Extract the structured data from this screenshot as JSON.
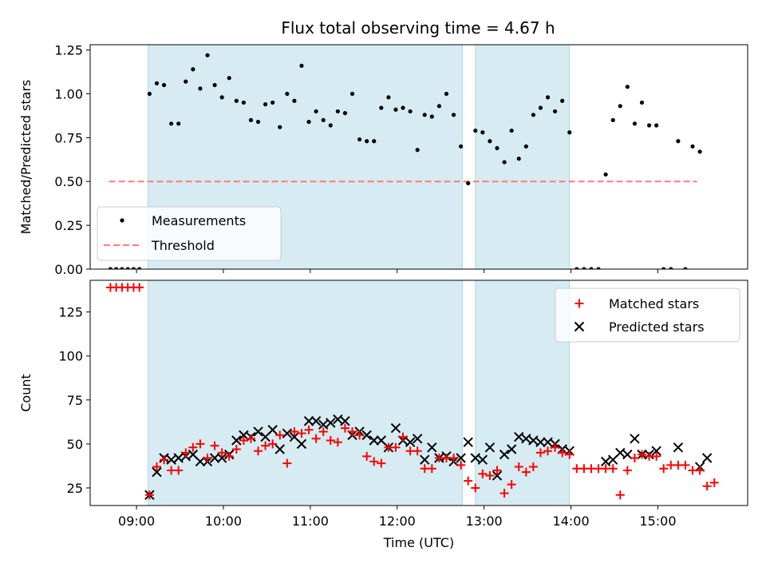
{
  "title": "Flux total observing time = 4.67 h",
  "chart_data": [
    {
      "type": "scatter",
      "ylabel": "Matched/Predicted stars",
      "xlim": [
        "08:28",
        "16:02"
      ],
      "ylim": [
        0,
        1.28
      ],
      "yticks": [
        {
          "value": 0,
          "label": "0.00"
        },
        {
          "value": 0.25,
          "label": "0.25"
        },
        {
          "value": 0.5,
          "label": "0.50"
        },
        {
          "value": 0.75,
          "label": "0.75"
        },
        {
          "value": 1.0,
          "label": "1.00"
        },
        {
          "value": 1.25,
          "label": "1.25"
        }
      ],
      "shaded_intervals": [
        [
          "09:08",
          "12:45"
        ],
        [
          "12:54",
          "13:59"
        ]
      ],
      "legend": {
        "placement": "lower-left",
        "entries": [
          "Measurements",
          "Threshold"
        ]
      },
      "threshold": {
        "name": "Threshold",
        "value": 0.5,
        "x": [
          "08:41",
          "15:27"
        ],
        "color": "#ff7b7b"
      },
      "measurements": {
        "name": "Measurements",
        "color": "#000000",
        "points": [
          [
            "08:42",
            0
          ],
          [
            "08:46",
            0
          ],
          [
            "08:50",
            0
          ],
          [
            "08:54",
            0
          ],
          [
            "08:58",
            0
          ],
          [
            "09:02",
            0
          ],
          [
            "09:09",
            1.0
          ],
          [
            "09:14",
            1.06
          ],
          [
            "09:19",
            1.05
          ],
          [
            "09:24",
            0.83
          ],
          [
            "09:29",
            0.83
          ],
          [
            "09:34",
            1.07
          ],
          [
            "09:39",
            1.14
          ],
          [
            "09:44",
            1.03
          ],
          [
            "09:49",
            1.22
          ],
          [
            "09:54",
            1.05
          ],
          [
            "09:59",
            0.98
          ],
          [
            "10:04",
            1.09
          ],
          [
            "10:09",
            0.96
          ],
          [
            "10:14",
            0.95
          ],
          [
            "10:19",
            0.85
          ],
          [
            "10:24",
            0.84
          ],
          [
            "10:29",
            0.94
          ],
          [
            "10:34",
            0.95
          ],
          [
            "10:39",
            0.81
          ],
          [
            "10:44",
            1.0
          ],
          [
            "10:49",
            0.96
          ],
          [
            "10:54",
            1.16
          ],
          [
            "10:59",
            0.84
          ],
          [
            "11:04",
            0.9
          ],
          [
            "11:09",
            0.85
          ],
          [
            "11:14",
            0.82
          ],
          [
            "11:19",
            0.9
          ],
          [
            "11:24",
            0.89
          ],
          [
            "11:29",
            1.0
          ],
          [
            "11:34",
            0.74
          ],
          [
            "11:39",
            0.73
          ],
          [
            "11:44",
            0.73
          ],
          [
            "11:49",
            0.92
          ],
          [
            "11:54",
            0.98
          ],
          [
            "11:59",
            0.91
          ],
          [
            "12:04",
            0.92
          ],
          [
            "12:09",
            0.9
          ],
          [
            "12:14",
            0.68
          ],
          [
            "12:19",
            0.88
          ],
          [
            "12:24",
            0.87
          ],
          [
            "12:29",
            0.93
          ],
          [
            "12:34",
            1.0
          ],
          [
            "12:39",
            0.88
          ],
          [
            "12:44",
            0.7
          ],
          [
            "12:49",
            0.49
          ],
          [
            "12:54",
            0.79
          ],
          [
            "12:59",
            0.78
          ],
          [
            "13:04",
            0.73
          ],
          [
            "13:09",
            0.69
          ],
          [
            "13:14",
            0.61
          ],
          [
            "13:19",
            0.79
          ],
          [
            "13:24",
            0.63
          ],
          [
            "13:29",
            0.7
          ],
          [
            "13:34",
            0.88
          ],
          [
            "13:39",
            0.92
          ],
          [
            "13:44",
            0.98
          ],
          [
            "13:49",
            0.9
          ],
          [
            "13:54",
            0.96
          ],
          [
            "13:59",
            0.78
          ],
          [
            "14:04",
            0
          ],
          [
            "14:09",
            0
          ],
          [
            "14:14",
            0
          ],
          [
            "14:19",
            0
          ],
          [
            "14:24",
            0.54
          ],
          [
            "14:29",
            0.85
          ],
          [
            "14:34",
            0.93
          ],
          [
            "14:39",
            1.04
          ],
          [
            "14:44",
            0.83
          ],
          [
            "14:49",
            0.95
          ],
          [
            "14:54",
            0.82
          ],
          [
            "14:59",
            0.82
          ],
          [
            "15:04",
            0
          ],
          [
            "15:09",
            0
          ],
          [
            "15:14",
            0.73
          ],
          [
            "15:19",
            0
          ],
          [
            "15:24",
            0.7
          ],
          [
            "15:29",
            0.67
          ]
        ]
      }
    },
    {
      "type": "scatter",
      "xlabel": "Time (UTC)",
      "ylabel": "Count",
      "xlim": [
        "08:28",
        "16:02"
      ],
      "ylim": [
        15,
        143
      ],
      "yticks": [
        {
          "value": 25,
          "label": "25"
        },
        {
          "value": 50,
          "label": "50"
        },
        {
          "value": 75,
          "label": "75"
        },
        {
          "value": 100,
          "label": "100"
        },
        {
          "value": 125,
          "label": "125"
        }
      ],
      "xticks": [
        {
          "value": "09:00",
          "label": "09:00"
        },
        {
          "value": "10:00",
          "label": "10:00"
        },
        {
          "value": "11:00",
          "label": "11:00"
        },
        {
          "value": "12:00",
          "label": "12:00"
        },
        {
          "value": "13:00",
          "label": "13:00"
        },
        {
          "value": "14:00",
          "label": "14:00"
        },
        {
          "value": "15:00",
          "label": "15:00"
        }
      ],
      "shaded_intervals": [
        [
          "09:08",
          "12:45"
        ],
        [
          "12:54",
          "13:59"
        ]
      ],
      "legend": {
        "placement": "top-right",
        "entries": [
          "Matched stars",
          "Predicted stars"
        ]
      },
      "series": [
        {
          "name": "Matched stars",
          "marker": "plus",
          "color": "#ff0000",
          "points": [
            [
              "08:42",
              139
            ],
            [
              "08:46",
              139
            ],
            [
              "08:50",
              139
            ],
            [
              "08:54",
              139
            ],
            [
              "08:58",
              139
            ],
            [
              "09:02",
              139
            ],
            [
              "09:09",
              21
            ],
            [
              "09:14",
              37
            ],
            [
              "09:19",
              41
            ],
            [
              "09:24",
              35
            ],
            [
              "09:29",
              35
            ],
            [
              "09:34",
              45
            ],
            [
              "09:39",
              48
            ],
            [
              "09:44",
              50
            ],
            [
              "09:49",
              42
            ],
            [
              "09:54",
              49
            ],
            [
              "09:59",
              45
            ],
            [
              "10:04",
              43
            ],
            [
              "10:09",
              47
            ],
            [
              "10:14",
              52
            ],
            [
              "10:19",
              53
            ],
            [
              "10:24",
              46
            ],
            [
              "10:29",
              49
            ],
            [
              "10:34",
              50
            ],
            [
              "10:39",
              55
            ],
            [
              "10:44",
              39
            ],
            [
              "10:49",
              57
            ],
            [
              "10:54",
              56
            ],
            [
              "10:59",
              58
            ],
            [
              "11:04",
              53
            ],
            [
              "11:09",
              57
            ],
            [
              "11:14",
              52
            ],
            [
              "11:19",
              51
            ],
            [
              "11:24",
              59
            ],
            [
              "11:29",
              57
            ],
            [
              "11:34",
              55
            ],
            [
              "11:39",
              43
            ],
            [
              "11:44",
              40
            ],
            [
              "11:49",
              39
            ],
            [
              "11:54",
              48
            ],
            [
              "11:59",
              48
            ],
            [
              "12:04",
              54
            ],
            [
              "12:09",
              46
            ],
            [
              "12:14",
              46
            ],
            [
              "12:19",
              36
            ],
            [
              "12:24",
              36
            ],
            [
              "12:29",
              42
            ],
            [
              "12:34",
              42
            ],
            [
              "12:39",
              42
            ],
            [
              "12:44",
              38
            ],
            [
              "12:49",
              29
            ],
            [
              "12:54",
              25
            ],
            [
              "12:59",
              33
            ],
            [
              "13:04",
              32
            ],
            [
              "13:09",
              35
            ],
            [
              "13:14",
              22
            ],
            [
              "13:19",
              27
            ],
            [
              "13:24",
              37
            ],
            [
              "13:29",
              34
            ],
            [
              "13:34",
              37
            ],
            [
              "13:39",
              45
            ],
            [
              "13:44",
              46
            ],
            [
              "13:49",
              48
            ],
            [
              "13:54",
              45
            ],
            [
              "13:59",
              44
            ],
            [
              "14:04",
              36
            ],
            [
              "14:09",
              36
            ],
            [
              "14:14",
              36
            ],
            [
              "14:19",
              36
            ],
            [
              "14:24",
              36
            ],
            [
              "14:29",
              36
            ],
            [
              "14:34",
              21
            ],
            [
              "14:39",
              35
            ],
            [
              "14:44",
              42
            ],
            [
              "14:49",
              44
            ],
            [
              "14:54",
              43
            ],
            [
              "14:59",
              43
            ],
            [
              "15:04",
              36
            ],
            [
              "15:09",
              38
            ],
            [
              "15:14",
              38
            ],
            [
              "15:19",
              38
            ],
            [
              "15:24",
              35
            ],
            [
              "15:29",
              35
            ],
            [
              "15:34",
              26
            ],
            [
              "15:39",
              28
            ]
          ]
        },
        {
          "name": "Predicted stars",
          "marker": "x",
          "color": "#000000",
          "points": [
            [
              "09:09",
              21
            ],
            [
              "09:14",
              34
            ],
            [
              "09:19",
              42
            ],
            [
              "09:24",
              41
            ],
            [
              "09:29",
              42
            ],
            [
              "09:34",
              43
            ],
            [
              "09:39",
              44
            ],
            [
              "09:44",
              40
            ],
            [
              "09:49",
              40
            ],
            [
              "09:54",
              42
            ],
            [
              "09:59",
              42
            ],
            [
              "10:04",
              44
            ],
            [
              "10:09",
              52
            ],
            [
              "10:14",
              55
            ],
            [
              "10:19",
              54
            ],
            [
              "10:24",
              57
            ],
            [
              "10:29",
              54
            ],
            [
              "10:34",
              58
            ],
            [
              "10:39",
              47
            ],
            [
              "10:44",
              56
            ],
            [
              "10:49",
              54
            ],
            [
              "10:54",
              50
            ],
            [
              "10:59",
              63
            ],
            [
              "11:04",
              63
            ],
            [
              "11:09",
              61
            ],
            [
              "11:14",
              62
            ],
            [
              "11:19",
              64
            ],
            [
              "11:24",
              63
            ],
            [
              "11:29",
              55
            ],
            [
              "11:34",
              57
            ],
            [
              "11:39",
              55
            ],
            [
              "11:44",
              52
            ],
            [
              "11:49",
              52
            ],
            [
              "11:54",
              48
            ],
            [
              "11:59",
              59
            ],
            [
              "12:04",
              52
            ],
            [
              "12:09",
              51
            ],
            [
              "12:14",
              53
            ],
            [
              "12:19",
              41
            ],
            [
              "12:24",
              48
            ],
            [
              "12:29",
              42
            ],
            [
              "12:34",
              43
            ],
            [
              "12:39",
              40
            ],
            [
              "12:44",
              42
            ],
            [
              "12:49",
              51
            ],
            [
              "12:54",
              42
            ],
            [
              "12:59",
              41
            ],
            [
              "13:04",
              48
            ],
            [
              "13:09",
              32
            ],
            [
              "13:14",
              44
            ],
            [
              "13:19",
              47
            ],
            [
              "13:24",
              54
            ],
            [
              "13:29",
              53
            ],
            [
              "13:34",
              52
            ],
            [
              "13:39",
              51
            ],
            [
              "13:44",
              51
            ],
            [
              "13:49",
              50
            ],
            [
              "13:54",
              47
            ],
            [
              "13:59",
              46
            ],
            [
              "14:24",
              40
            ],
            [
              "14:29",
              41
            ],
            [
              "14:34",
              45
            ],
            [
              "14:39",
              44
            ],
            [
              "14:44",
              53
            ],
            [
              "14:49",
              44
            ],
            [
              "14:54",
              44
            ],
            [
              "14:59",
              46
            ],
            [
              "15:14",
              48
            ],
            [
              "15:29",
              37
            ],
            [
              "15:34",
              42
            ]
          ]
        }
      ]
    }
  ]
}
